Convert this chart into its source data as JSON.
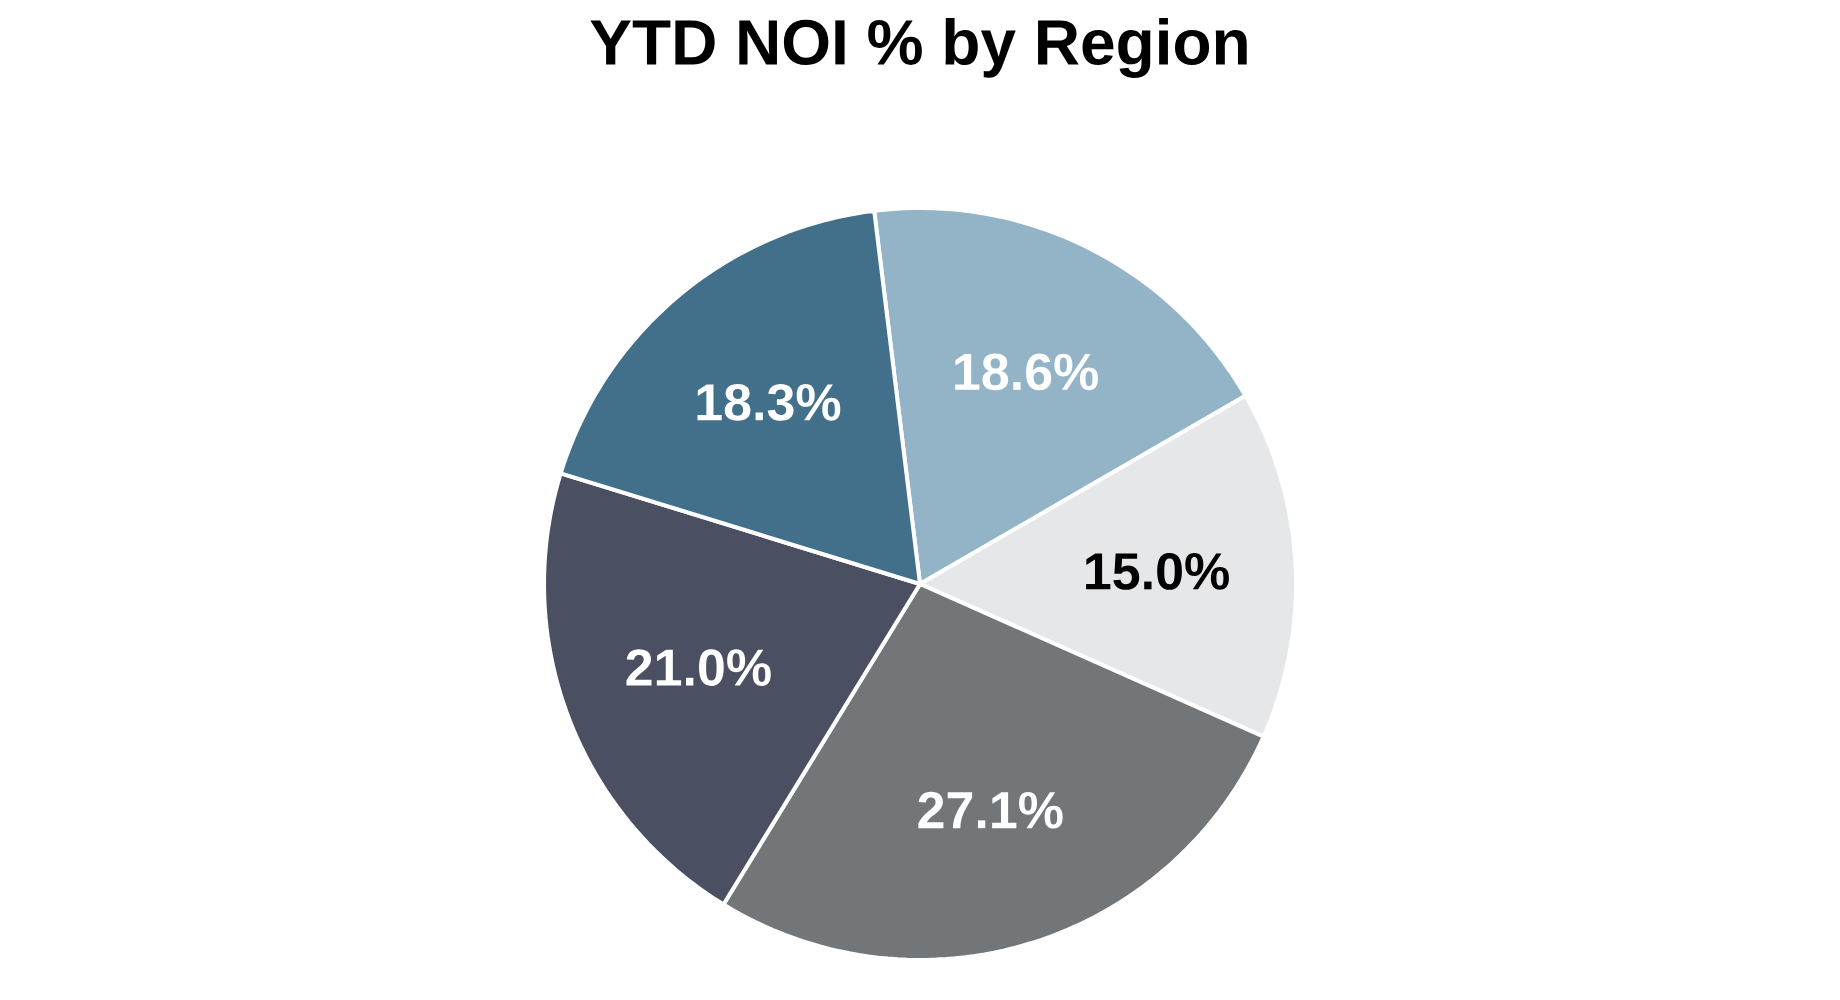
{
  "chart_data": {
    "type": "pie",
    "title": "YTD NOI % by Region",
    "categories": [
      null,
      null,
      null,
      null,
      null
    ],
    "values": [
      18.6,
      15.0,
      27.1,
      21.0,
      18.3
    ],
    "colors": [
      "#93b4c6",
      "#e6e7e9",
      "#737679",
      "#4a4f61",
      "#426f8a"
    ],
    "value_labels": [
      "18.6%",
      "15.0%",
      "27.1%",
      "21.0%",
      "18.3%"
    ]
  }
}
